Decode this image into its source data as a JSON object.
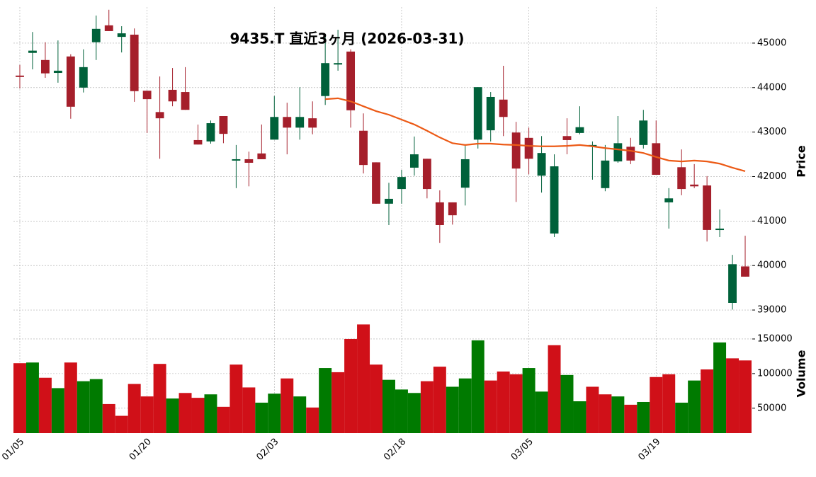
{
  "chart_data": {
    "type": "candlestick",
    "title": "9435.T 直近3ヶ月 (2026-03-31)",
    "ylabel": "Price",
    "categories": [
      "01/05",
      null,
      null,
      null,
      null,
      null,
      null,
      null,
      null,
      null,
      "01/20",
      null,
      null,
      null,
      null,
      null,
      null,
      null,
      null,
      null,
      "02/03",
      null,
      null,
      null,
      null,
      null,
      null,
      null,
      null,
      null,
      "02/18",
      null,
      null,
      null,
      null,
      null,
      null,
      null,
      null,
      null,
      "03/05",
      null,
      null,
      null,
      null,
      null,
      null,
      null,
      null,
      null,
      "03/19",
      null,
      null,
      null,
      null,
      null,
      null,
      null
    ],
    "open": [
      44270,
      44780,
      44620,
      44330,
      44700,
      44000,
      45020,
      45400,
      45140,
      45190,
      43930,
      43450,
      43950,
      43900,
      42820,
      42790,
      43360,
      42370,
      42390,
      42520,
      42830,
      43340,
      43100,
      43310,
      43810,
      44540,
      44810,
      43030,
      42320,
      41390,
      41720,
      42200,
      42400,
      41420,
      41420,
      41750,
      42830,
      43040,
      43730,
      42990,
      42870,
      42020,
      40720,
      42910,
      42980,
      42700,
      41740,
      42340,
      42670,
      42710,
      42750,
      41420,
      42210,
      41820,
      41800,
      40800,
      39160,
      39980
    ],
    "high": [
      44510,
      45250,
      45020,
      45060,
      44750,
      44860,
      45620,
      45750,
      45380,
      45330,
      43930,
      44250,
      44440,
      44460,
      43170,
      43260,
      43360,
      42710,
      42560,
      43170,
      43810,
      43660,
      44010,
      43690,
      45180,
      45300,
      44860,
      43420,
      42320,
      41860,
      42150,
      42900,
      42400,
      41690,
      41420,
      42690,
      44010,
      43900,
      44490,
      43230,
      43100,
      42910,
      42500,
      43310,
      43580,
      42790,
      42710,
      43360,
      42870,
      43500,
      43260,
      41740,
      42610,
      42280,
      42010,
      41260,
      40240,
      40670
    ],
    "low": [
      43980,
      44410,
      44220,
      44110,
      43300,
      43890,
      44620,
      45270,
      44790,
      43680,
      42980,
      42400,
      43580,
      43500,
      42720,
      42740,
      42750,
      41740,
      41780,
      42390,
      42830,
      42500,
      42830,
      42950,
      43610,
      44380,
      43100,
      42070,
      41390,
      40910,
      41390,
      42020,
      41510,
      40510,
      40920,
      41350,
      42630,
      42790,
      42910,
      41430,
      42050,
      41640,
      40640,
      42500,
      42950,
      41930,
      41670,
      42310,
      42280,
      42630,
      42040,
      40830,
      41580,
      41740,
      40540,
      40640,
      39010,
      39750
    ],
    "close": [
      44250,
      44830,
      44320,
      44380,
      43570,
      44460,
      45320,
      45270,
      45220,
      43920,
      43740,
      43310,
      43690,
      43500,
      42720,
      43200,
      42960,
      42390,
      42310,
      42390,
      43340,
      43100,
      43340,
      43100,
      44550,
      44550,
      43490,
      42260,
      41390,
      41500,
      41990,
      42500,
      41720,
      40910,
      41130,
      42390,
      44010,
      43790,
      43340,
      42180,
      42400,
      42530,
      42230,
      42820,
      43110,
      42710,
      42360,
      42750,
      42360,
      43260,
      42040,
      41510,
      41720,
      41780,
      40800,
      40830,
      40030,
      39750
    ],
    "up_color": "#00613a",
    "down_color": "#a51f2b",
    "ylim": [
      38810,
      45810
    ],
    "yticks": [
      39000,
      40000,
      41000,
      42000,
      43000,
      44000,
      45000
    ],
    "grid": true,
    "ma": {
      "color": "#ec5a16",
      "values": [
        null,
        null,
        null,
        null,
        null,
        null,
        null,
        null,
        null,
        null,
        null,
        null,
        null,
        null,
        null,
        null,
        null,
        null,
        null,
        null,
        null,
        null,
        null,
        null,
        43740,
        43760,
        43690,
        43580,
        43470,
        43390,
        43280,
        43170,
        43030,
        42880,
        42750,
        42710,
        42740,
        42740,
        42720,
        42710,
        42690,
        42680,
        42680,
        42690,
        42710,
        42680,
        42640,
        42610,
        42580,
        42530,
        42440,
        42360,
        42340,
        42360,
        42340,
        42290,
        42200,
        42120
      ]
    },
    "volume": {
      "ylabel": "Volume",
      "values": [
        115000,
        116000,
        94000,
        79000,
        116000,
        89000,
        92000,
        56000,
        39000,
        85000,
        67000,
        114000,
        64000,
        72000,
        65000,
        70000,
        52000,
        113000,
        80000,
        58000,
        71000,
        93000,
        67000,
        51000,
        108000,
        102000,
        150000,
        171000,
        113000,
        91000,
        77000,
        72000,
        89000,
        110000,
        81000,
        93000,
        148000,
        90000,
        103000,
        99000,
        108000,
        74000,
        141000,
        98000,
        60000,
        81000,
        70000,
        67000,
        55000,
        59000,
        95000,
        99000,
        58000,
        90000,
        106000,
        145000,
        122000,
        119000
      ],
      "colors": [
        "#d01018",
        "#007a00",
        "#d01018",
        "#007a00",
        "#d01018",
        "#007a00",
        "#007a00",
        "#d01018",
        "#d01018",
        "#d01018",
        "#d01018",
        "#d01018",
        "#007a00",
        "#d01018",
        "#d01018",
        "#007a00",
        "#d01018",
        "#d01018",
        "#d01018",
        "#007a00",
        "#007a00",
        "#d01018",
        "#007a00",
        "#d01018",
        "#007a00",
        "#d01018",
        "#d01018",
        "#d01018",
        "#d01018",
        "#007a00",
        "#007a00",
        "#007a00",
        "#d01018",
        "#d01018",
        "#007a00",
        "#007a00",
        "#007a00",
        "#d01018",
        "#d01018",
        "#d01018",
        "#007a00",
        "#007a00",
        "#d01018",
        "#007a00",
        "#007a00",
        "#d01018",
        "#d01018",
        "#007a00",
        "#d01018",
        "#007a00",
        "#d01018",
        "#d01018",
        "#007a00",
        "#007a00",
        "#d01018",
        "#007a00",
        "#d01018",
        "#d01018"
      ],
      "ylim": [
        14000,
        174500
      ],
      "yticks": [
        50000,
        100000,
        150000
      ]
    }
  }
}
